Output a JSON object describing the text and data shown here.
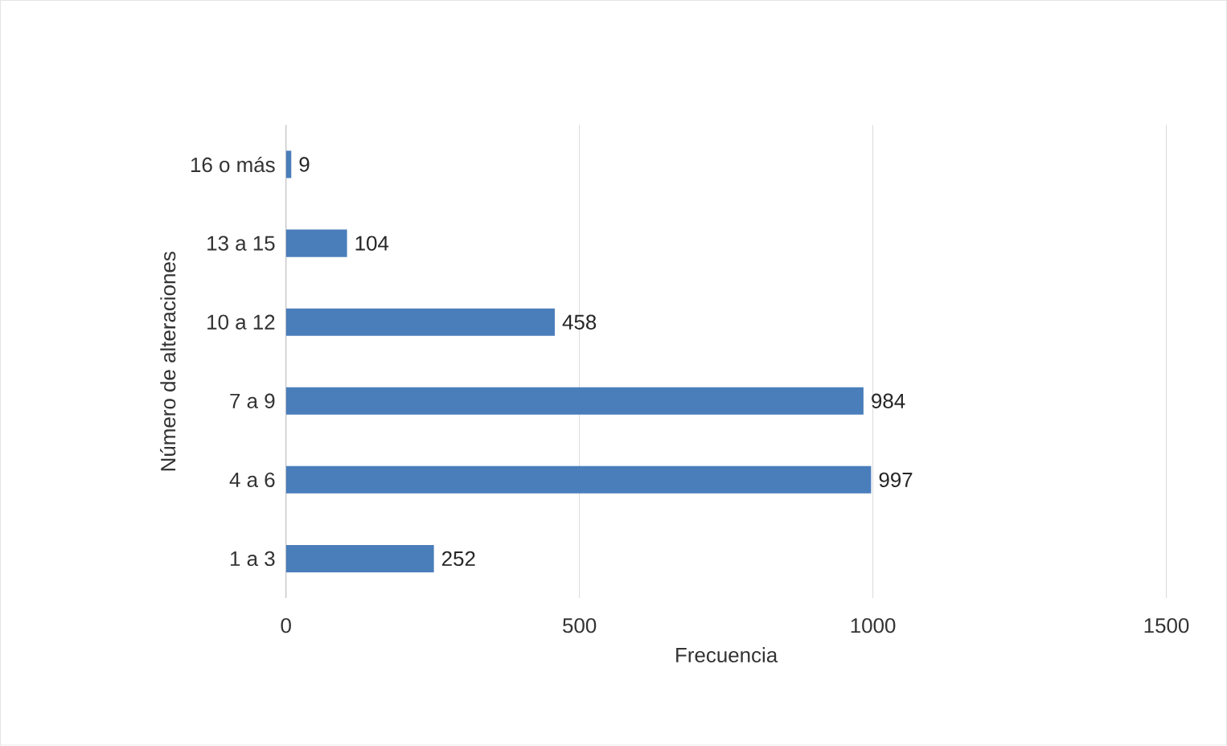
{
  "chart_data": {
    "type": "bar",
    "orientation": "horizontal",
    "xlabel": "Frecuencia",
    "ylabel": "Número de alteraciones",
    "categories": [
      "16 o más",
      "13 a 15",
      "10 a 12",
      "7 a 9",
      "4 a 6",
      "1 a 3"
    ],
    "values": [
      9,
      104,
      458,
      984,
      997,
      252
    ],
    "color": "#4a7ebb",
    "xlim": [
      0,
      1500
    ],
    "xticks": [
      0,
      500,
      1000,
      1500
    ],
    "grid": "x",
    "data_labels": true
  }
}
